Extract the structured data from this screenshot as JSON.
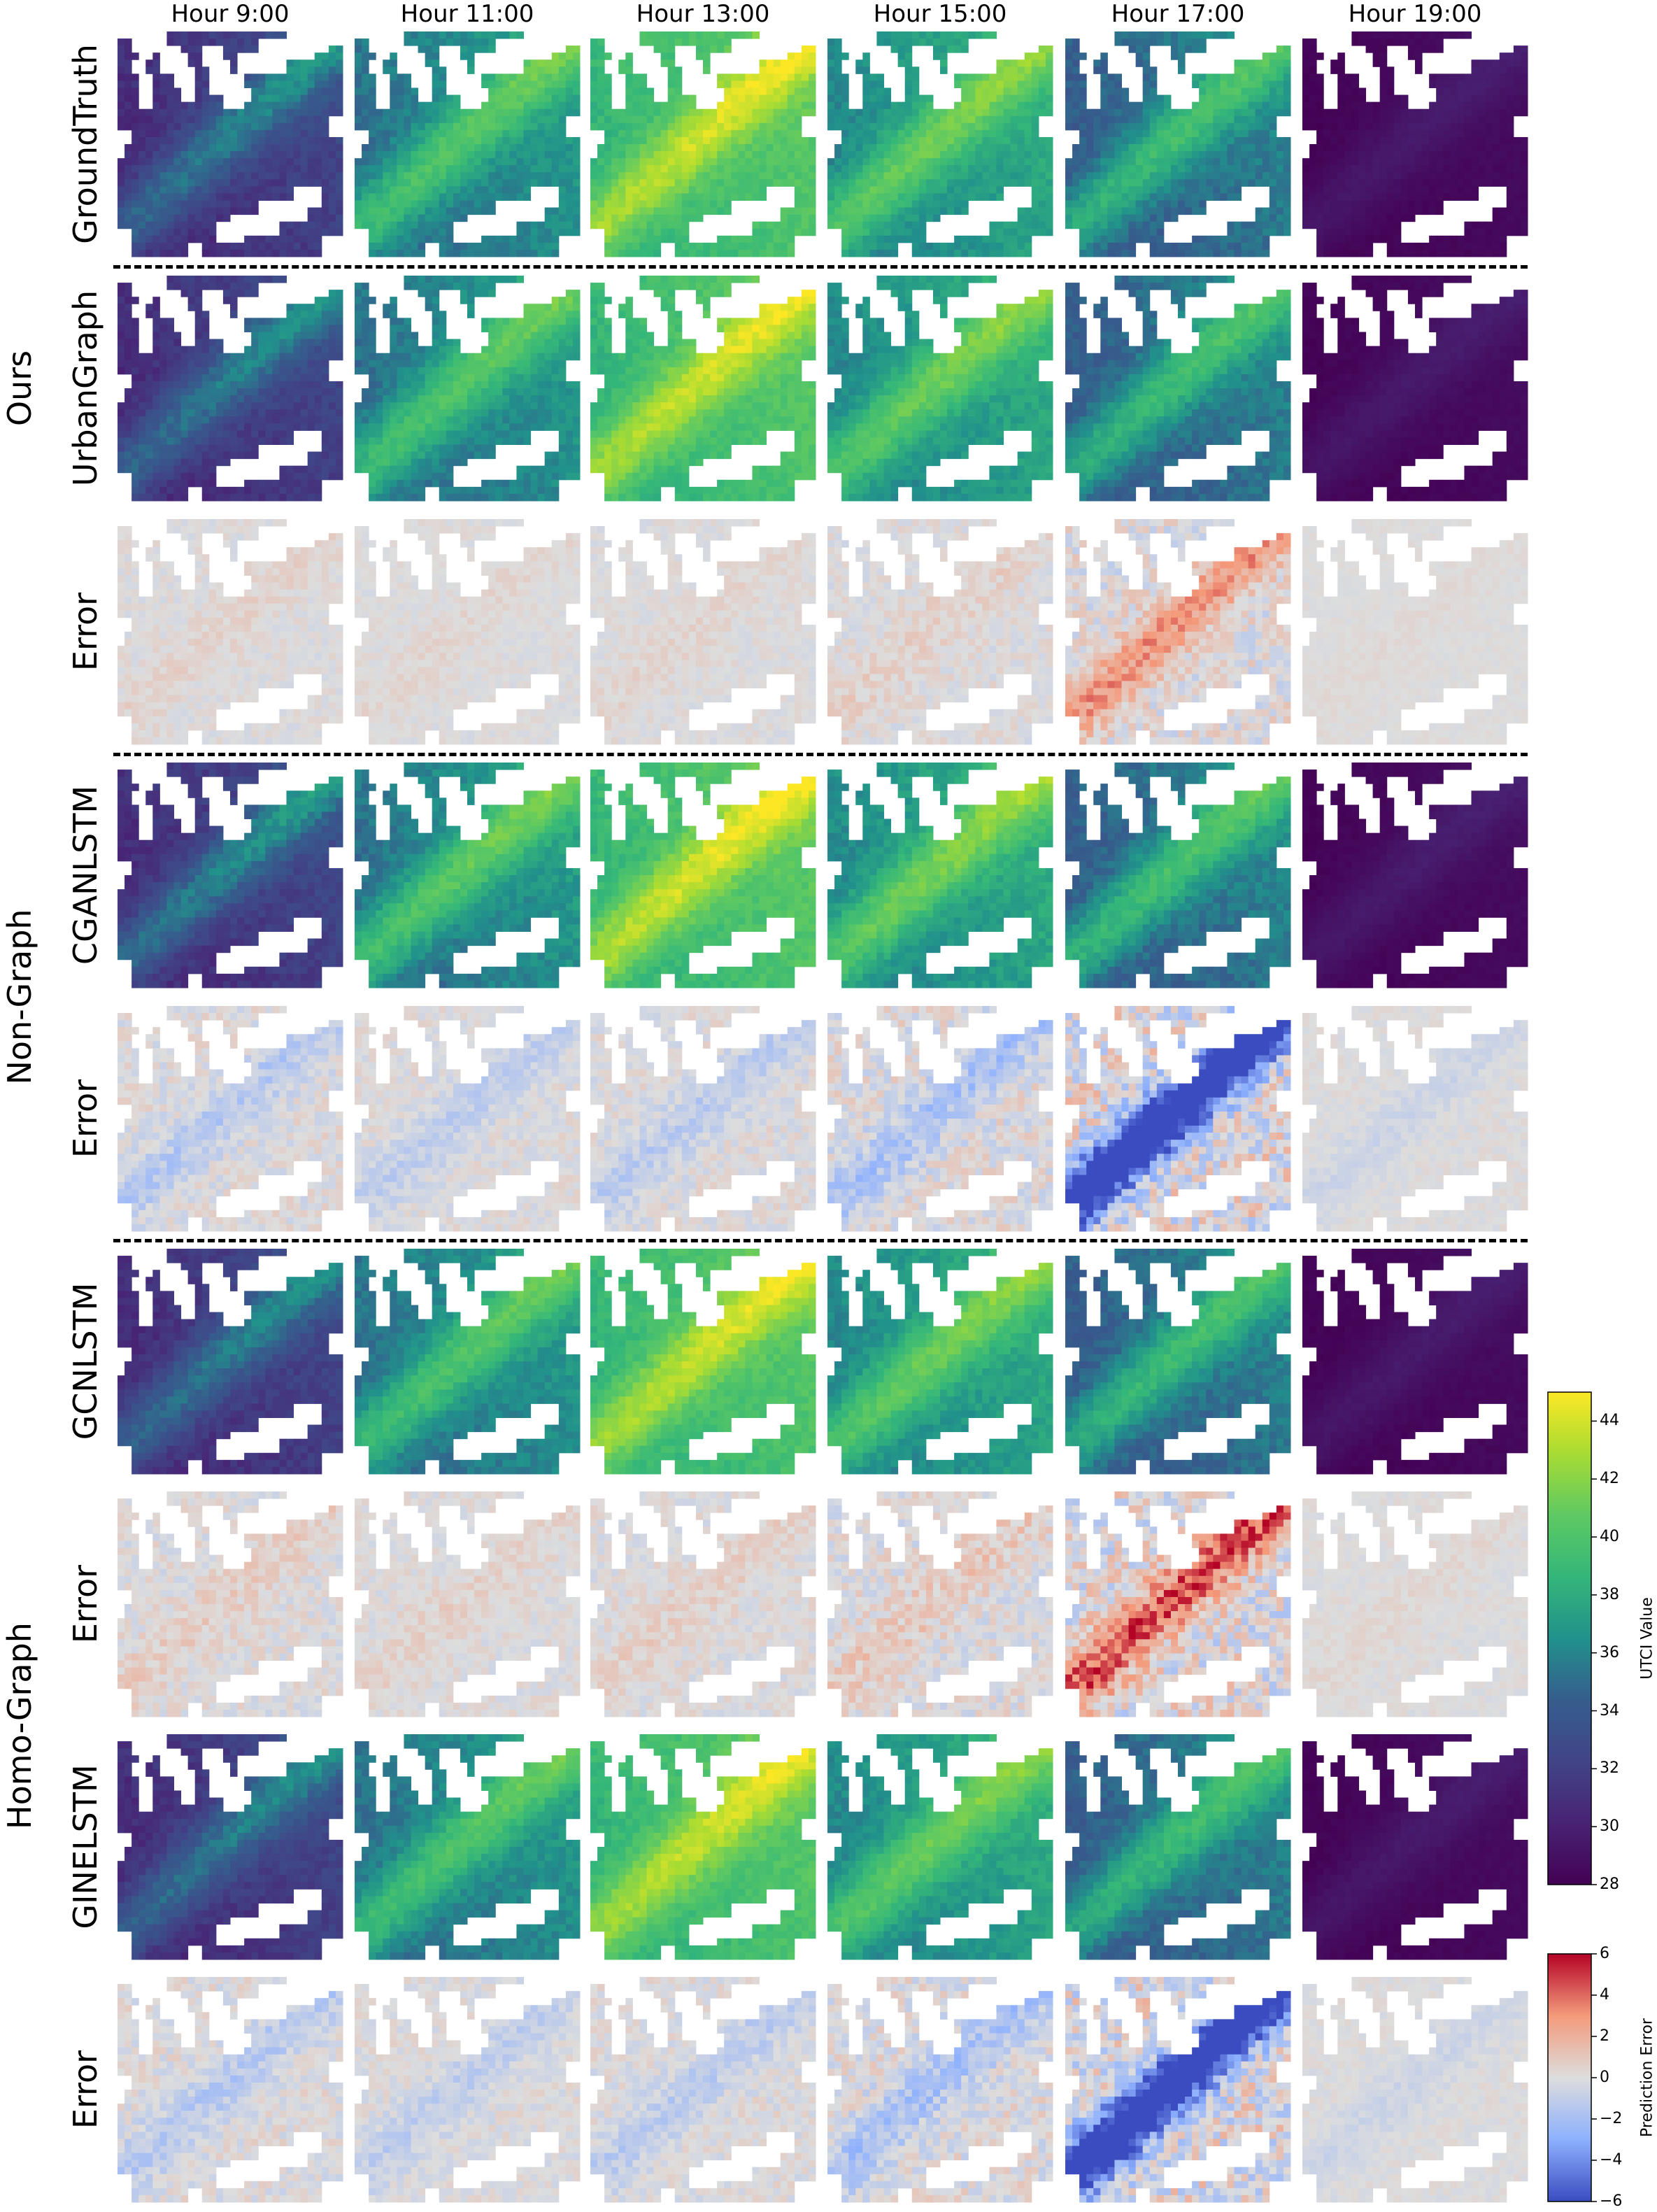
{
  "chart_data": {
    "type": "heatmap",
    "description_free": true,
    "columns": [
      "Hour 9:00",
      "Hour 11:00",
      "Hour 13:00",
      "Hour 15:00",
      "Hour 17:00",
      "Hour 19:00"
    ],
    "groups": [
      {
        "label": "Ours",
        "rows": [
          "GroundTruth",
          "UrbanGraph",
          "Error"
        ]
      },
      {
        "label": "Non-Graph",
        "rows": [
          "CGANLSTM",
          "Error"
        ]
      },
      {
        "label": "Homo-Graph",
        "rows": [
          "GCNLSTM",
          "Error",
          "GINELSTM",
          "Error"
        ]
      }
    ],
    "row_kinds": [
      "value",
      "value",
      "error",
      "value",
      "error",
      "value",
      "error",
      "value",
      "error"
    ],
    "row_labels": [
      "GroundTruth",
      "UrbanGraph",
      "Error",
      "CGANLSTM",
      "Error",
      "GCNLSTM",
      "Error",
      "GINELSTM",
      "Error"
    ],
    "column_mean_utci": [
      33,
      37.5,
      41,
      38.5,
      36.5,
      31
    ],
    "colorbars": [
      {
        "label": "UTCI Value",
        "colormap": "viridis",
        "range": [
          28,
          45
        ],
        "ticks": [
          "28",
          "30",
          "32",
          "34",
          "36",
          "38",
          "40",
          "42",
          "44"
        ],
        "tick_values": [
          28,
          30,
          32,
          34,
          36,
          38,
          40,
          42,
          44
        ]
      },
      {
        "label": "Prediction Error",
        "colormap": "coolwarm",
        "range": [
          -6,
          6
        ],
        "ticks": [
          "−6",
          "−4",
          "−2",
          "0",
          "2",
          "4",
          "6"
        ],
        "tick_values": [
          -6,
          -4,
          -2,
          0,
          2,
          4,
          6
        ]
      }
    ]
  }
}
